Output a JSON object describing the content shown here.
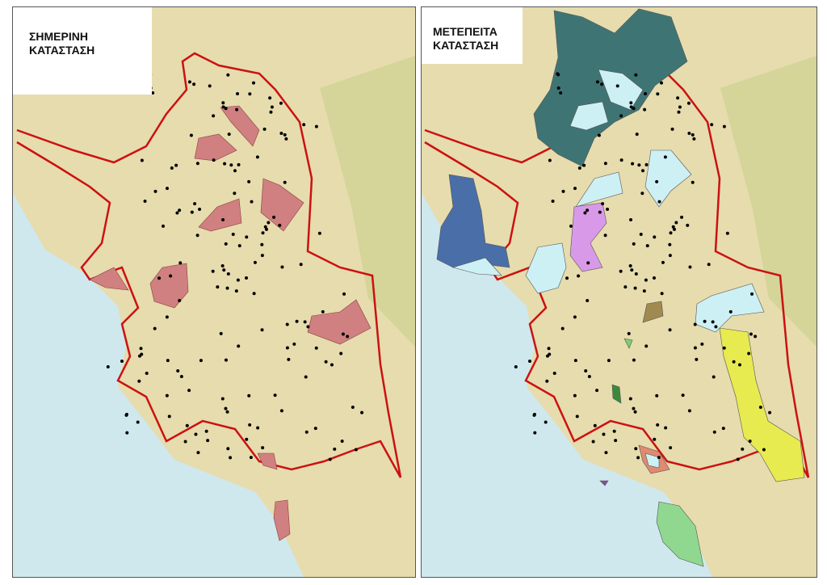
{
  "panels": [
    {
      "title_line1": "ΣΗΜΕΡΙΝΗ",
      "title_line2": "ΚΑΤΑΣΤΑΣΗ",
      "zone_colors": [
        "#d08080"
      ]
    },
    {
      "title_line1": "ΜΕΤΕΠΕΙΤΑ",
      "title_line2": "ΚΑΤΑΣΤΑΣΗ",
      "zone_colors": [
        "#3f7474",
        "#cdf0f5",
        "#4a6ea8",
        "#d89ae8",
        "#a08a50",
        "#7ad070",
        "#3a8a3a",
        "#e8eb50",
        "#e08a70",
        "#8050a0",
        "#90d890"
      ]
    }
  ],
  "colors": {
    "border": "#cc1111",
    "land": "#e6dcae",
    "sea": "#cfe8ee",
    "points": "#000000"
  }
}
